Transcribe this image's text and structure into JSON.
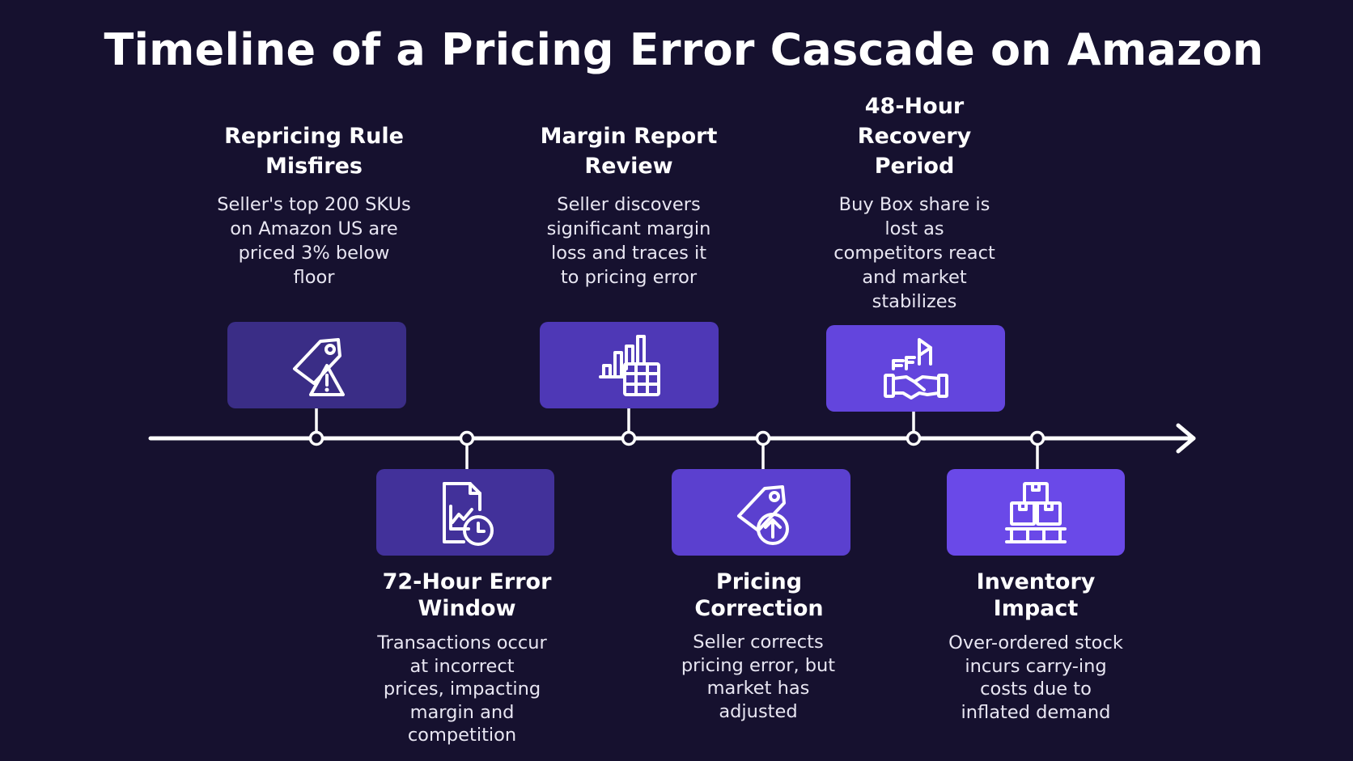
{
  "title": "Timeline of a Pricing Error Cascade on Amazon",
  "colors": {
    "background": "#16112f",
    "box_1": "#3a2d86",
    "box_2": "#42319a",
    "box_3": "#4e38b6",
    "box_4": "#5b40cf",
    "box_5": "#6345dd",
    "box_6": "#6a49e8",
    "line": "#ffffff"
  },
  "events": [
    {
      "title": "Repricing Rule Misfires",
      "description": "Seller's top 200 SKUs on Amazon US are priced 3% below floor",
      "icon": "price-tag-warning-icon"
    },
    {
      "title": "72-Hour Error Window",
      "description": "Transactions occur at incorrect prices, impacting margin and competition",
      "icon": "document-chart-clock-icon"
    },
    {
      "title": "Margin Report Review",
      "description": "Seller discovers significant margin loss and traces it to pricing error",
      "icon": "bar-chart-table-icon"
    },
    {
      "title": "Pricing Correction",
      "description": "Seller corrects pricing error, but market has adjusted",
      "icon": "price-tag-up-arrow-icon"
    },
    {
      "title": "48-Hour Recovery Period",
      "description": "Buy Box share is lost as competitors react and market stabilizes",
      "icon": "handshake-flag-icon"
    },
    {
      "title": "Inventory Impact",
      "description": "Over-ordered stock incurs carry-ing costs due to inflated demand",
      "icon": "boxes-pallet-icon"
    }
  ]
}
